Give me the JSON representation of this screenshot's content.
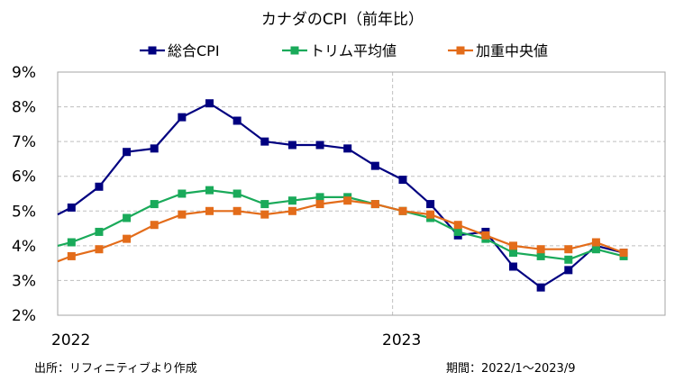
{
  "chart_data": {
    "type": "line",
    "title": "カナダのCPI（前年比）",
    "xlabel": "",
    "ylabel": "",
    "ylim": [
      2,
      9
    ],
    "yticks": [
      2,
      3,
      4,
      5,
      6,
      7,
      8,
      9
    ],
    "ytick_suffix": "%",
    "x_year_labels": [
      {
        "label": "2022",
        "index": 0
      },
      {
        "label": "2023",
        "index": 12
      }
    ],
    "x_start_index": -0.5,
    "x_end_index": 21.5,
    "categories": [
      "2022/1",
      "2022/2",
      "2022/3",
      "2022/4",
      "2022/5",
      "2022/6",
      "2022/7",
      "2022/8",
      "2022/9",
      "2022/10",
      "2022/11",
      "2022/12",
      "2023/1",
      "2023/2",
      "2023/3",
      "2023/4",
      "2023/5",
      "2023/6",
      "2023/7",
      "2023/8",
      "2023/9"
    ],
    "series": [
      {
        "name": "総合CPI",
        "color": "#000080",
        "start_value": 4.9,
        "values": [
          5.1,
          5.7,
          6.7,
          6.8,
          7.7,
          8.1,
          7.6,
          7.0,
          6.9,
          6.9,
          6.8,
          6.3,
          5.9,
          5.2,
          4.3,
          4.4,
          3.4,
          2.8,
          3.3,
          4.0,
          3.8
        ]
      },
      {
        "name": "トリム平均値",
        "color": "#1aaa5a",
        "start_value": 4.0,
        "values": [
          4.1,
          4.4,
          4.8,
          5.2,
          5.5,
          5.6,
          5.5,
          5.2,
          5.3,
          5.4,
          5.4,
          5.2,
          5.0,
          4.8,
          4.4,
          4.2,
          3.8,
          3.7,
          3.6,
          3.9,
          3.7
        ]
      },
      {
        "name": "加重中央値",
        "color": "#e36c1a",
        "start_value": 3.55,
        "values": [
          3.7,
          3.9,
          4.2,
          4.6,
          4.9,
          5.0,
          5.0,
          4.9,
          5.0,
          5.2,
          5.3,
          5.2,
          5.0,
          4.9,
          4.6,
          4.3,
          4.0,
          3.9,
          3.9,
          4.1,
          3.8
        ]
      }
    ],
    "legend_position": "top-center",
    "grid": true
  },
  "footer": {
    "source": "出所：リフィニティブより作成",
    "period": "期間：2022/1～2023/9"
  }
}
